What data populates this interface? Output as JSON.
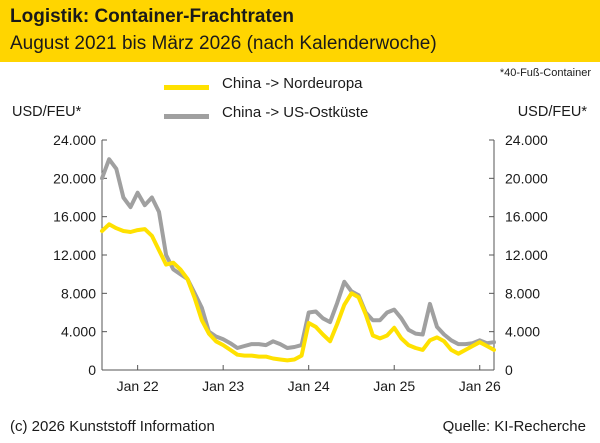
{
  "header": {
    "title": "Logistik: Container-Frachtraten",
    "subtitle": "August 2021 bis März 2026 (nach Kalenderwoche)"
  },
  "note": "*40-Fuß-Container",
  "footer": {
    "copyright": "(c) 2026 Kunststoff Information",
    "source": "Quelle: KI-Recherche"
  },
  "colors": {
    "header_bg": "#ffd500",
    "nordeuropa": "#ffe100",
    "us_ostkueste": "#a0a0a0",
    "axis": "#555555"
  },
  "chart_data": {
    "type": "line",
    "title": "Logistik: Container-Frachtraten",
    "subtitle": "August 2021 bis März 2026 (nach Kalenderwoche)",
    "ylabel_left": "USD/FEU*",
    "ylabel_right": "USD/FEU*",
    "ylim": [
      0,
      24000
    ],
    "xlim": [
      "2021-08",
      "2026-03"
    ],
    "y_ticks": [
      "0",
      "4.000",
      "8.000",
      "12.000",
      "16.000",
      "20.000",
      "24.000"
    ],
    "y_tick_values": [
      0,
      4000,
      8000,
      12000,
      16000,
      20000,
      24000
    ],
    "x_ticks": [
      "Jan 22",
      "Jan 23",
      "Jan 24",
      "Jan 25",
      "Jan 26"
    ],
    "x_tick_values": [
      "2022-01",
      "2023-01",
      "2024-01",
      "2025-01",
      "2026-01"
    ],
    "grid": false,
    "legend_position": "top-center",
    "series": [
      {
        "name": "China -> Nordeuropa",
        "color": "#ffe100",
        "points": [
          [
            "2021-08",
            14500
          ],
          [
            "2021-09",
            15200
          ],
          [
            "2021-10",
            14800
          ],
          [
            "2021-11",
            14500
          ],
          [
            "2021-12",
            14400
          ],
          [
            "2022-01",
            14600
          ],
          [
            "2022-02",
            14700
          ],
          [
            "2022-03",
            14000
          ],
          [
            "2022-04",
            12500
          ],
          [
            "2022-05",
            11000
          ],
          [
            "2022-06",
            11200
          ],
          [
            "2022-07",
            10500
          ],
          [
            "2022-08",
            9500
          ],
          [
            "2022-09",
            7500
          ],
          [
            "2022-10",
            5200
          ],
          [
            "2022-11",
            3800
          ],
          [
            "2022-12",
            3000
          ],
          [
            "2023-01",
            2600
          ],
          [
            "2023-02",
            2100
          ],
          [
            "2023-03",
            1600
          ],
          [
            "2023-04",
            1500
          ],
          [
            "2023-05",
            1500
          ],
          [
            "2023-06",
            1400
          ],
          [
            "2023-07",
            1400
          ],
          [
            "2023-08",
            1200
          ],
          [
            "2023-09",
            1100
          ],
          [
            "2023-10",
            1000
          ],
          [
            "2023-11",
            1100
          ],
          [
            "2023-12",
            1500
          ],
          [
            "2024-01",
            4900
          ],
          [
            "2024-02",
            4500
          ],
          [
            "2024-03",
            3700
          ],
          [
            "2024-04",
            3000
          ],
          [
            "2024-05",
            4800
          ],
          [
            "2024-06",
            6800
          ],
          [
            "2024-07",
            8000
          ],
          [
            "2024-08",
            7600
          ],
          [
            "2024-09",
            5800
          ],
          [
            "2024-10",
            3600
          ],
          [
            "2024-11",
            3300
          ],
          [
            "2024-12",
            3600
          ],
          [
            "2025-01",
            4400
          ],
          [
            "2025-02",
            3300
          ],
          [
            "2025-03",
            2600
          ],
          [
            "2025-04",
            2300
          ],
          [
            "2025-05",
            2100
          ],
          [
            "2025-06",
            3100
          ],
          [
            "2025-07",
            3400
          ],
          [
            "2025-08",
            3000
          ],
          [
            "2025-09",
            2100
          ],
          [
            "2025-10",
            1700
          ],
          [
            "2025-11",
            2100
          ],
          [
            "2025-12",
            2500
          ],
          [
            "2026-01",
            2900
          ],
          [
            "2026-02",
            2500
          ],
          [
            "2026-03",
            2100
          ]
        ]
      },
      {
        "name": "China -> US-Ostküste",
        "color": "#a0a0a0",
        "points": [
          [
            "2021-08",
            20000
          ],
          [
            "2021-09",
            22000
          ],
          [
            "2021-10",
            21000
          ],
          [
            "2021-11",
            18000
          ],
          [
            "2021-12",
            17000
          ],
          [
            "2022-01",
            18500
          ],
          [
            "2022-02",
            17200
          ],
          [
            "2022-03",
            18000
          ],
          [
            "2022-04",
            16500
          ],
          [
            "2022-05",
            12000
          ],
          [
            "2022-06",
            10500
          ],
          [
            "2022-07",
            10000
          ],
          [
            "2022-08",
            9500
          ],
          [
            "2022-09",
            8000
          ],
          [
            "2022-10",
            6500
          ],
          [
            "2022-11",
            4000
          ],
          [
            "2022-12",
            3500
          ],
          [
            "2023-01",
            3200
          ],
          [
            "2023-02",
            2800
          ],
          [
            "2023-03",
            2300
          ],
          [
            "2023-04",
            2500
          ],
          [
            "2023-05",
            2700
          ],
          [
            "2023-06",
            2700
          ],
          [
            "2023-07",
            2600
          ],
          [
            "2023-08",
            3000
          ],
          [
            "2023-09",
            2700
          ],
          [
            "2023-10",
            2300
          ],
          [
            "2023-11",
            2400
          ],
          [
            "2023-12",
            2600
          ],
          [
            "2024-01",
            6000
          ],
          [
            "2024-02",
            6100
          ],
          [
            "2024-03",
            5400
          ],
          [
            "2024-04",
            5000
          ],
          [
            "2024-05",
            7000
          ],
          [
            "2024-06",
            9200
          ],
          [
            "2024-07",
            8200
          ],
          [
            "2024-08",
            7800
          ],
          [
            "2024-09",
            6000
          ],
          [
            "2024-10",
            5200
          ],
          [
            "2024-11",
            5200
          ],
          [
            "2024-12",
            6000
          ],
          [
            "2025-01",
            6300
          ],
          [
            "2025-02",
            5400
          ],
          [
            "2025-03",
            4200
          ],
          [
            "2025-04",
            3800
          ],
          [
            "2025-05",
            3700
          ],
          [
            "2025-06",
            6900
          ],
          [
            "2025-07",
            4500
          ],
          [
            "2025-08",
            3700
          ],
          [
            "2025-09",
            3100
          ],
          [
            "2025-10",
            2700
          ],
          [
            "2025-11",
            2700
          ],
          [
            "2025-12",
            2800
          ],
          [
            "2026-01",
            3100
          ],
          [
            "2026-02",
            2800
          ],
          [
            "2026-03",
            2900
          ]
        ]
      }
    ]
  }
}
